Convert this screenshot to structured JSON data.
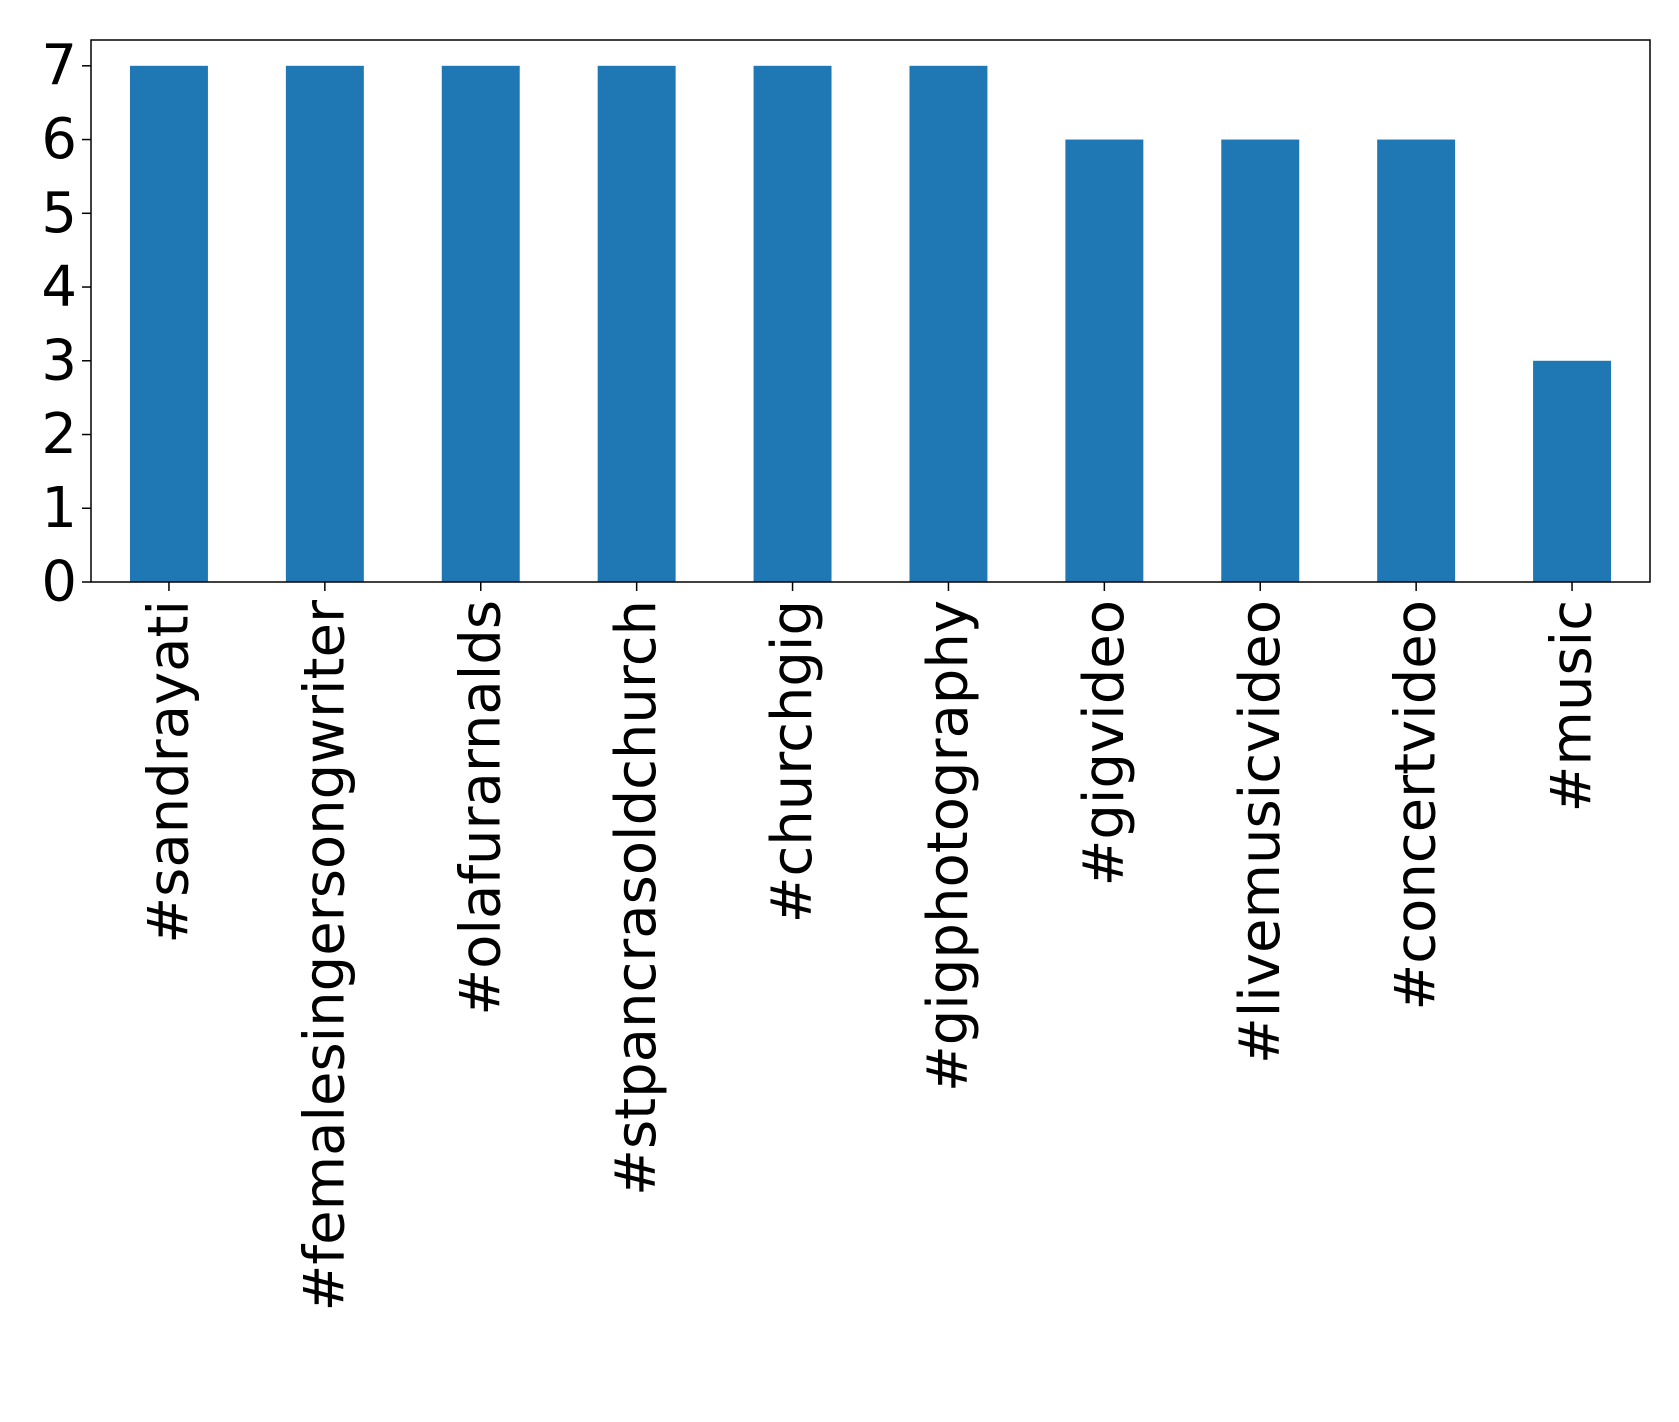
{
  "chart_data": {
    "type": "bar",
    "categories": [
      "#sandrayati",
      "#femalesingersongwriter",
      "#olafurarnalds",
      "#stpancrasoldchurch",
      "#churchgig",
      "#gigphotography",
      "#gigvideo",
      "#livemusicvideo",
      "#concertvideo",
      "#music"
    ],
    "values": [
      7,
      7,
      7,
      7,
      7,
      7,
      6,
      6,
      6,
      3
    ],
    "title": "",
    "xlabel": "",
    "ylabel": "",
    "ylim": [
      0,
      7.35
    ],
    "yticks": [
      0,
      1,
      2,
      3,
      4,
      5,
      6,
      7
    ],
    "grid": false,
    "legend": "none",
    "bar_color": "#1f77b4"
  }
}
